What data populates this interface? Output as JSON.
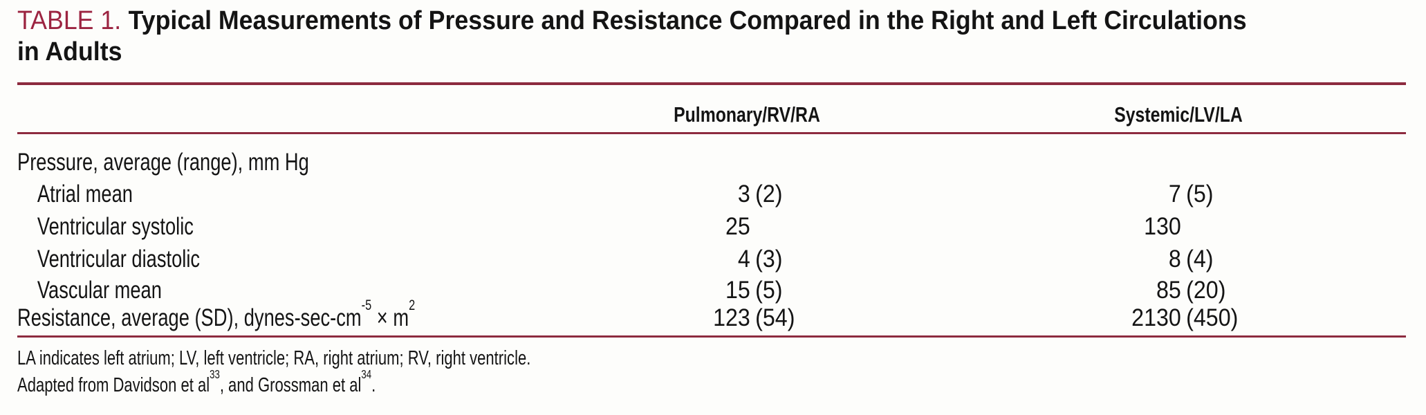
{
  "page": {
    "background": "#fdfdfb",
    "text_color": "#141414",
    "accent_color": "#9c2441",
    "rule_color": "#8d2b3f"
  },
  "table": {
    "label": "TABLE 1.",
    "title_line1": "Typical Measurements of Pressure and Resistance Compared in the Right and Left Circulations",
    "title_line2": "in Adults",
    "columns": [
      "Pulmonary/RV/RA",
      "Systemic/LV/LA"
    ],
    "rows": [
      {
        "label": "Pressure, average (range), mm Hg",
        "indent": false,
        "pulmonary": {
          "main": "",
          "paren": ""
        },
        "systemic": {
          "main": "",
          "paren": ""
        }
      },
      {
        "label": "Atrial mean",
        "indent": true,
        "pulmonary": {
          "main": "3",
          "paren": "(2)"
        },
        "systemic": {
          "main": "7",
          "paren": "(5)"
        }
      },
      {
        "label": "Ventricular systolic",
        "indent": true,
        "pulmonary": {
          "main": "25",
          "paren": ""
        },
        "systemic": {
          "main": "130",
          "paren": ""
        }
      },
      {
        "label": "Ventricular diastolic",
        "indent": true,
        "pulmonary": {
          "main": "4",
          "paren": "(3)"
        },
        "systemic": {
          "main": "8",
          "paren": "(4)"
        }
      },
      {
        "label": "Vascular mean",
        "indent": true,
        "pulmonary": {
          "main": "15",
          "paren": "(5)"
        },
        "systemic": {
          "main": "85",
          "paren": "(20)"
        }
      },
      {
        "label_parts": [
          "Resistance, average (SD), dynes-sec-cm",
          "-5",
          " × m",
          "2"
        ],
        "indent": false,
        "pulmonary": {
          "main": "123",
          "paren": "(54)"
        },
        "systemic": {
          "main": "2130",
          "paren": "(450)"
        }
      }
    ],
    "footnotes": {
      "abbreviations": "LA indicates left atrium; LV, left ventricle; RA, right atrium; RV, right ventricle.",
      "source_parts": [
        "Adapted from Davidson et al",
        "33",
        ", and Grossman et al",
        "34",
        "."
      ]
    }
  }
}
